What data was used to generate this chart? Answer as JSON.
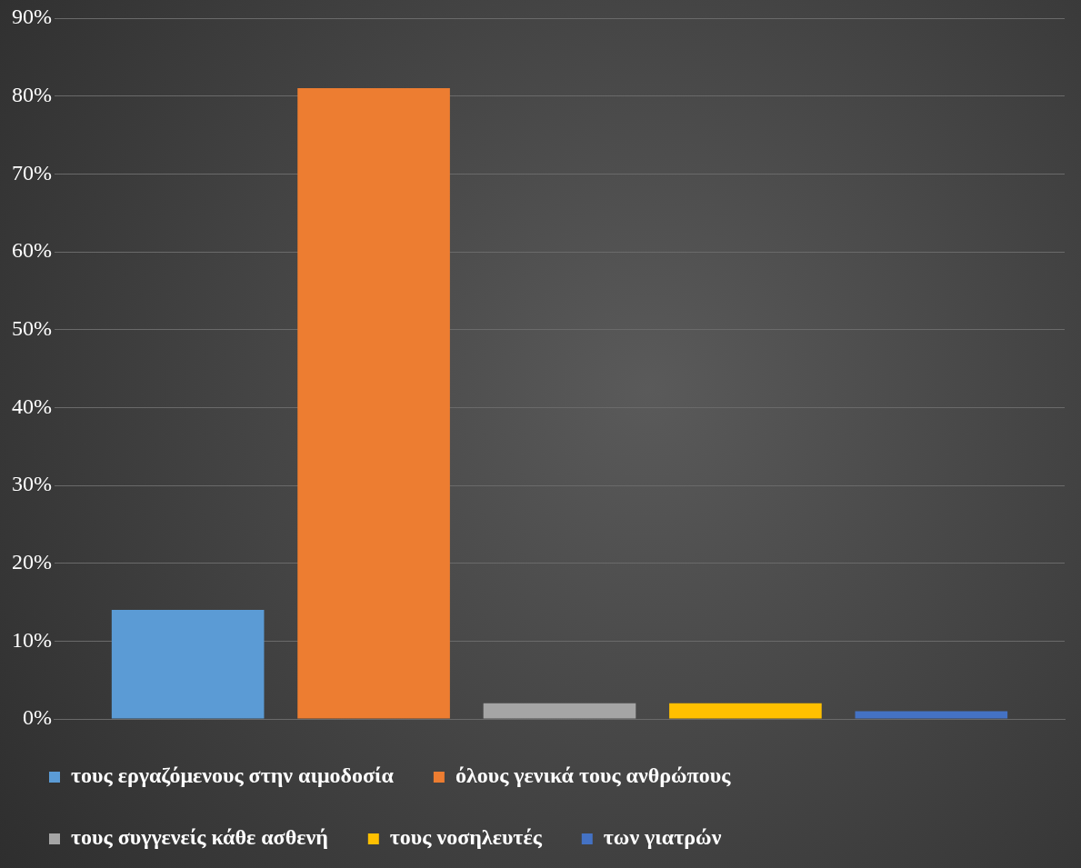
{
  "chart_data": {
    "type": "bar",
    "categories": [
      null
    ],
    "series": [
      {
        "name": "τους εργαζόμενους στην αιμοδοσία",
        "color": "#5b9bd5",
        "values": [
          14
        ]
      },
      {
        "name": "όλους γενικά τους ανθρώπους",
        "color": "#ed7d31",
        "values": [
          81
        ]
      },
      {
        "name": "τους συγγενείς κάθε ασθενή",
        "color": "#a5a5a5",
        "values": [
          2
        ]
      },
      {
        "name": "τους νοσηλευτές",
        "color": "#ffc000",
        "values": [
          2
        ]
      },
      {
        "name": "των γιατρών",
        "color": "#4472c4",
        "values": [
          1
        ]
      }
    ],
    "ylim": [
      0,
      90
    ],
    "yticks": [
      {
        "value": 0,
        "label": "0%"
      },
      {
        "value": 10,
        "label": "10%"
      },
      {
        "value": 20,
        "label": "20%"
      },
      {
        "value": 30,
        "label": "30%"
      },
      {
        "value": 40,
        "label": "40%"
      },
      {
        "value": 50,
        "label": "50%"
      },
      {
        "value": 60,
        "label": "60%"
      },
      {
        "value": 70,
        "label": "70%"
      },
      {
        "value": 80,
        "label": "80%"
      },
      {
        "value": 90,
        "label": "90%"
      }
    ],
    "grid": "y",
    "legend": "bottom"
  }
}
